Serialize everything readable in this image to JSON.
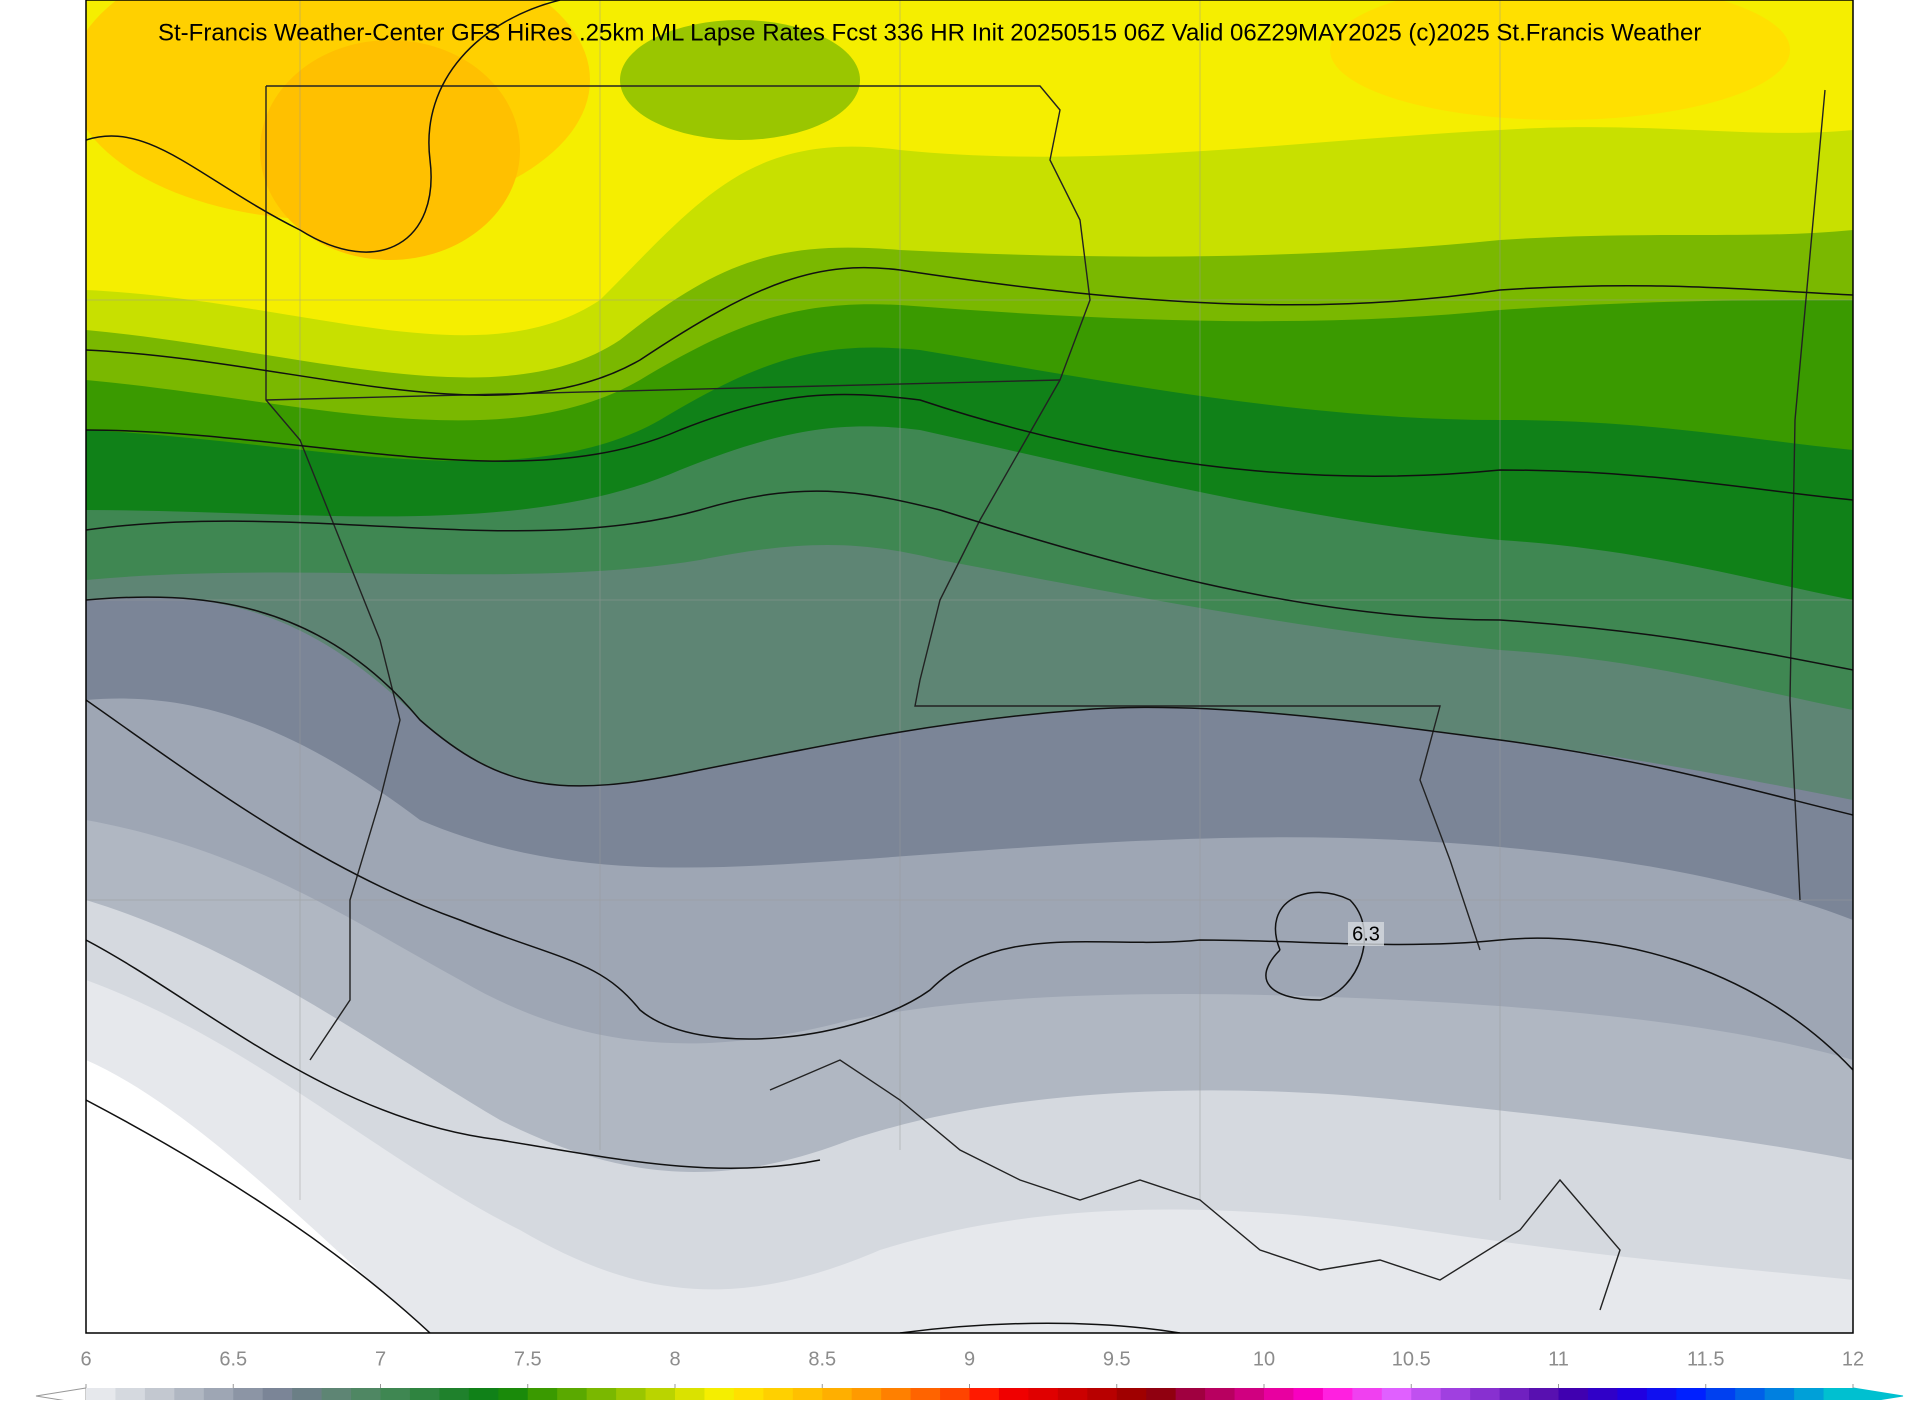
{
  "title": "St-Francis Weather-Center GFS HiRes .25km ML Lapse Rates  Fcst 336 HR  Init 20250515 06Z  Valid 06Z29MAY2025    (c)2025 St.Francis Weather",
  "contour_labels": [
    6.3
  ],
  "colorbar": {
    "range": [
      6,
      12
    ],
    "ticks": [
      6,
      6.5,
      7,
      7.5,
      8,
      8.5,
      9,
      9.5,
      10,
      10.5,
      11,
      11.5,
      12
    ],
    "colors": [
      "#e6e8ec",
      "#d5d9df",
      "#c3c8d0",
      "#b0b7c2",
      "#9ea6b4",
      "#8c95a5",
      "#7b8597",
      "#6b7f86",
      "#5e8574",
      "#4f8763",
      "#3f8752",
      "#2f8440",
      "#1f812c",
      "#108118",
      "#1a8a0a",
      "#3a9a00",
      "#5aa900",
      "#7ab800",
      "#9ac600",
      "#bad400",
      "#dae200",
      "#f5ee00",
      "#ffe000",
      "#ffd000",
      "#ffc000",
      "#ffaf00",
      "#ff9a00",
      "#ff8000",
      "#ff6400",
      "#ff4400",
      "#ff1a00",
      "#f00000",
      "#e00000",
      "#cc0000",
      "#b80000",
      "#a00000",
      "#900010",
      "#a00040",
      "#b80060",
      "#d00080",
      "#e800a0",
      "#f800c0",
      "#ff20e0",
      "#f040f0",
      "#e060ff",
      "#c050f0",
      "#a040e0",
      "#8830d0",
      "#7020c0",
      "#5810b0",
      "#4000b0",
      "#3000c8",
      "#2000e0",
      "#1010f0",
      "#0020ff",
      "#0040f0",
      "#0060e8",
      "#0080e0",
      "#00a0d8",
      "#00c0d0"
    ]
  }
}
